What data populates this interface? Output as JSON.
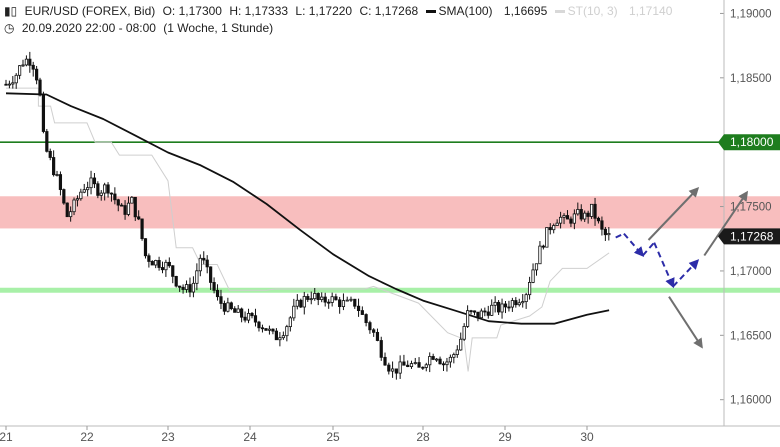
{
  "header": {
    "symbol": "EUR/USD (FOREX, Bid)",
    "open": "O: 1,17300",
    "high": "H: 1,17333",
    "low": "L: 1,17220",
    "close": "C: 1,17268",
    "sma_label": "SMA(100)",
    "sma_value": "1,16695",
    "st_label": "ST(10, 3)",
    "st_value": "1,17140",
    "date_range": "20.09.2020 22:00 - 08:00",
    "interval": "(1 Woche, 1 Stunde)"
  },
  "chart_data": {
    "type": "candlestick",
    "y_range": [
      1.1585,
      1.1905
    ],
    "y_ticks": [
      {
        "value": 1.19,
        "label": "1,19000"
      },
      {
        "value": 1.185,
        "label": "1,18500"
      },
      {
        "value": 1.18,
        "label": "1,18000"
      },
      {
        "value": 1.175,
        "label": "1,17500"
      },
      {
        "value": 1.17,
        "label": "1,17000"
      },
      {
        "value": 1.165,
        "label": "1,16500"
      },
      {
        "value": 1.16,
        "label": "1,16000"
      }
    ],
    "x_labels": [
      {
        "label": "21",
        "day": 0
      },
      {
        "label": "22",
        "day": 1
      },
      {
        "label": "23",
        "day": 2
      },
      {
        "label": "24",
        "day": 3
      },
      {
        "label": "25",
        "day": 4
      },
      {
        "label": "28",
        "day": 5
      },
      {
        "label": "29",
        "day": 6
      },
      {
        "label": "30",
        "day": 7
      }
    ],
    "resistance_level": {
      "value": 1.18,
      "label": "1,18000",
      "color": "#1e7d1e"
    },
    "resistance_zone": {
      "from": 1.1733,
      "to": 1.1758,
      "color": "#f7b3b3"
    },
    "support_level": {
      "value": 1.1685,
      "color": "#a8f0a8"
    },
    "current_price": {
      "value": 1.17268,
      "label": "1,17268",
      "color": "#1a1a1a"
    },
    "price_path": [
      [
        0.0,
        1.1845
      ],
      [
        0.12,
        1.1852
      ],
      [
        0.2,
        1.1862
      ],
      [
        0.28,
        1.1865
      ],
      [
        0.36,
        1.1858
      ],
      [
        0.42,
        1.1835
      ],
      [
        0.47,
        1.1798
      ],
      [
        0.55,
        1.1785
      ],
      [
        0.65,
        1.1768
      ],
      [
        0.75,
        1.1742
      ],
      [
        0.85,
        1.1752
      ],
      [
        0.95,
        1.1765
      ],
      [
        1.05,
        1.1768
      ],
      [
        1.15,
        1.1762
      ],
      [
        1.25,
        1.1766
      ],
      [
        1.35,
        1.1755
      ],
      [
        1.45,
        1.1745
      ],
      [
        1.55,
        1.1755
      ],
      [
        1.65,
        1.1735
      ],
      [
        1.72,
        1.1712
      ],
      [
        1.8,
        1.1708
      ],
      [
        1.9,
        1.1706
      ],
      [
        2.0,
        1.1704
      ],
      [
        2.1,
        1.1692
      ],
      [
        2.2,
        1.1685
      ],
      [
        2.3,
        1.1688
      ],
      [
        2.4,
        1.1712
      ],
      [
        2.5,
        1.1695
      ],
      [
        2.6,
        1.1678
      ],
      [
        2.7,
        1.1672
      ],
      [
        2.8,
        1.1668
      ],
      [
        2.9,
        1.1665
      ],
      [
        3.0,
        1.1663
      ],
      [
        3.1,
        1.166
      ],
      [
        3.2,
        1.1655
      ],
      [
        3.3,
        1.1648
      ],
      [
        3.42,
        1.1655
      ],
      [
        3.55,
        1.1672
      ],
      [
        3.65,
        1.1678
      ],
      [
        3.75,
        1.1682
      ],
      [
        3.85,
        1.1675
      ],
      [
        3.95,
        1.1679
      ],
      [
        4.05,
        1.1676
      ],
      [
        4.15,
        1.1674
      ],
      [
        4.25,
        1.1675
      ],
      [
        4.35,
        1.1662
      ],
      [
        4.45,
        1.1652
      ],
      [
        4.55,
        1.1635
      ],
      [
        4.65,
        1.1622
      ],
      [
        4.75,
        1.1625
      ],
      [
        4.85,
        1.1628
      ],
      [
        4.95,
        1.1623
      ],
      [
        5.05,
        1.1632
      ],
      [
        5.15,
        1.1636
      ],
      [
        5.25,
        1.1628
      ],
      [
        5.35,
        1.1632
      ],
      [
        5.45,
        1.1645
      ],
      [
        5.55,
        1.1668
      ],
      [
        5.65,
        1.1665
      ],
      [
        5.75,
        1.1668
      ],
      [
        5.85,
        1.1672
      ],
      [
        5.95,
        1.167
      ],
      [
        6.05,
        1.1675
      ],
      [
        6.15,
        1.1678
      ],
      [
        6.25,
        1.1682
      ],
      [
        6.32,
        1.1698
      ],
      [
        6.42,
        1.1715
      ],
      [
        6.5,
        1.1728
      ],
      [
        6.58,
        1.1738
      ],
      [
        6.66,
        1.1742
      ],
      [
        6.74,
        1.1738
      ],
      [
        6.82,
        1.1741
      ],
      [
        6.9,
        1.1744
      ],
      [
        6.98,
        1.1742
      ],
      [
        7.06,
        1.1748
      ],
      [
        7.13,
        1.1738
      ],
      [
        7.2,
        1.1728
      ],
      [
        7.27,
        1.17268
      ]
    ],
    "sma_100": [
      [
        0.0,
        1.1838
      ],
      [
        0.5,
        1.1837
      ],
      [
        0.8,
        1.1828
      ],
      [
        1.2,
        1.1818
      ],
      [
        1.6,
        1.1805
      ],
      [
        2.0,
        1.1792
      ],
      [
        2.4,
        1.1782
      ],
      [
        2.8,
        1.1769
      ],
      [
        3.2,
        1.1752
      ],
      [
        3.6,
        1.1732
      ],
      [
        4.0,
        1.1713
      ],
      [
        4.4,
        1.1696
      ],
      [
        4.7,
        1.1686
      ],
      [
        5.0,
        1.1677
      ],
      [
        5.4,
        1.1669
      ],
      [
        5.8,
        1.1661
      ],
      [
        6.2,
        1.1659
      ],
      [
        6.6,
        1.1659
      ],
      [
        7.0,
        1.1666
      ],
      [
        7.27,
        1.16695
      ]
    ],
    "supertrend": [
      [
        0.0,
        1.1842
      ],
      [
        0.1,
        1.1842
      ],
      [
        0.4,
        1.1842
      ],
      [
        0.4,
        1.1828
      ],
      [
        0.55,
        1.1828
      ],
      [
        0.6,
        1.1815
      ],
      [
        1.0,
        1.1815
      ],
      [
        1.1,
        1.18
      ],
      [
        1.3,
        1.18
      ],
      [
        1.4,
        1.179
      ],
      [
        1.8,
        1.179
      ],
      [
        2.0,
        1.177
      ],
      [
        2.1,
        1.1718
      ],
      [
        2.3,
        1.1718
      ],
      [
        2.4,
        1.1705
      ],
      [
        2.6,
        1.1705
      ],
      [
        2.75,
        1.1685
      ],
      [
        3.2,
        1.1685
      ],
      [
        3.3,
        1.1686
      ],
      [
        4.35,
        1.1686
      ],
      [
        4.45,
        1.1688
      ],
      [
        4.95,
        1.1675
      ],
      [
        5.3,
        1.1652
      ],
      [
        5.5,
        1.1647
      ],
      [
        5.55,
        1.1622
      ],
      [
        5.6,
        1.1648
      ],
      [
        5.9,
        1.1648
      ],
      [
        5.95,
        1.1658
      ],
      [
        6.3,
        1.1665
      ],
      [
        6.45,
        1.1672
      ],
      [
        6.55,
        1.1692
      ],
      [
        6.7,
        1.1702
      ],
      [
        7.0,
        1.1702
      ],
      [
        7.27,
        1.1714
      ]
    ],
    "scenarios": {
      "dashed_path": [
        [
          7.35,
          1.1726
        ],
        [
          7.45,
          1.1729
        ],
        [
          7.68,
          1.1712
        ],
        [
          7.82,
          1.1722
        ],
        [
          8.05,
          1.1688
        ],
        [
          8.35,
          1.1708
        ]
      ],
      "arrow_up_1": [
        [
          7.75,
          1.1724
        ],
        [
          8.35,
          1.1764
        ]
      ],
      "arrow_up_2": [
        [
          8.43,
          1.1712
        ],
        [
          8.95,
          1.1761
        ]
      ],
      "arrow_down": [
        [
          8.0,
          1.168
        ],
        [
          8.4,
          1.1641
        ]
      ],
      "arrow_color": "#6f6f6f",
      "dashed_color": "#2c2ca8"
    }
  }
}
